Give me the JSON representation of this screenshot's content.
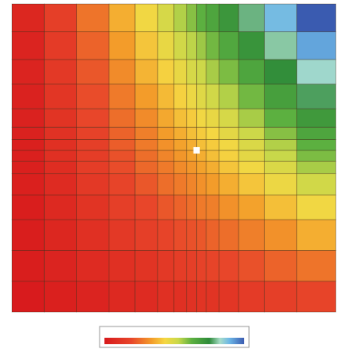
{
  "chart_data": {
    "type": "heatmap",
    "xlim": [
      0,
      100
    ],
    "ylim": [
      0,
      100
    ],
    "x_edges": [
      0,
      10,
      20,
      30,
      38,
      45,
      50,
      54,
      57,
      60,
      64,
      70,
      78,
      88,
      100
    ],
    "y_edges": [
      0,
      10,
      20,
      30,
      38,
      45,
      49,
      52.5,
      56,
      60,
      66,
      74,
      82,
      91,
      100
    ],
    "values": [
      [
        0.01,
        0.03,
        0.05,
        0.07,
        0.08,
        0.1,
        0.1,
        0.11,
        0.12,
        0.12,
        0.13,
        0.15,
        0.17,
        0.19
      ],
      [
        0.02,
        0.05,
        0.08,
        0.1,
        0.12,
        0.14,
        0.16,
        0.17,
        0.18,
        0.19,
        0.2,
        0.22,
        0.25,
        0.28
      ],
      [
        0.02,
        0.06,
        0.1,
        0.14,
        0.17,
        0.19,
        0.21,
        0.22,
        0.23,
        0.25,
        0.27,
        0.3,
        0.33,
        0.38
      ],
      [
        0.02,
        0.07,
        0.12,
        0.17,
        0.2,
        0.23,
        0.25,
        0.27,
        0.29,
        0.3,
        0.33,
        0.36,
        0.41,
        0.46
      ],
      [
        0.03,
        0.08,
        0.14,
        0.19,
        0.23,
        0.27,
        0.29,
        0.31,
        0.33,
        0.35,
        0.38,
        0.42,
        0.47,
        0.53
      ],
      [
        0.03,
        0.09,
        0.16,
        0.21,
        0.26,
        0.29,
        0.32,
        0.34,
        0.36,
        0.38,
        0.42,
        0.46,
        0.51,
        0.58
      ],
      [
        0.03,
        0.1,
        0.16,
        0.22,
        0.27,
        0.31,
        0.34,
        0.36,
        0.38,
        0.41,
        0.44,
        0.49,
        0.55,
        0.62
      ],
      [
        0.03,
        0.1,
        0.17,
        0.24,
        0.29,
        0.33,
        0.36,
        0.38,
        0.41,
        0.43,
        0.46,
        0.51,
        0.57,
        0.65
      ],
      [
        0.04,
        0.11,
        0.18,
        0.25,
        0.3,
        0.35,
        0.38,
        0.41,
        0.43,
        0.45,
        0.49,
        0.54,
        0.61,
        0.69
      ],
      [
        0.04,
        0.12,
        0.2,
        0.27,
        0.32,
        0.37,
        0.41,
        0.43,
        0.46,
        0.48,
        0.52,
        0.58,
        0.65,
        0.73
      ],
      [
        0.04,
        0.13,
        0.21,
        0.29,
        0.35,
        0.4,
        0.44,
        0.47,
        0.5,
        0.53,
        0.57,
        0.63,
        0.71,
        0.8
      ],
      [
        0.05,
        0.14,
        0.23,
        0.32,
        0.39,
        0.44,
        0.48,
        0.52,
        0.54,
        0.58,
        0.62,
        0.69,
        0.77,
        0.87
      ],
      [
        0.05,
        0.15,
        0.25,
        0.35,
        0.42,
        0.48,
        0.53,
        0.56,
        0.59,
        0.63,
        0.68,
        0.75,
        0.84,
        0.95
      ],
      [
        0.06,
        0.17,
        0.28,
        0.38,
        0.46,
        0.52,
        0.57,
        0.61,
        0.65,
        0.69,
        0.74,
        0.82,
        0.92,
        1.04
      ]
    ],
    "vlim": [
      0,
      1.04
    ],
    "colorscale": [
      [
        0,
        "#d7191c"
      ],
      [
        0.2,
        "#e8462a"
      ],
      [
        0.35,
        "#f39c2a"
      ],
      [
        0.45,
        "#f5d742"
      ],
      [
        0.55,
        "#c8d84a"
      ],
      [
        0.65,
        "#5cb040"
      ],
      [
        0.78,
        "#2e8b3a"
      ],
      [
        0.86,
        "#a8dcc8"
      ],
      [
        0.93,
        "#6cb6e6"
      ],
      [
        1.04,
        "#3a5bb0"
      ]
    ],
    "marker": {
      "x": 57,
      "y": 52.5,
      "color": "#ffffff"
    }
  }
}
